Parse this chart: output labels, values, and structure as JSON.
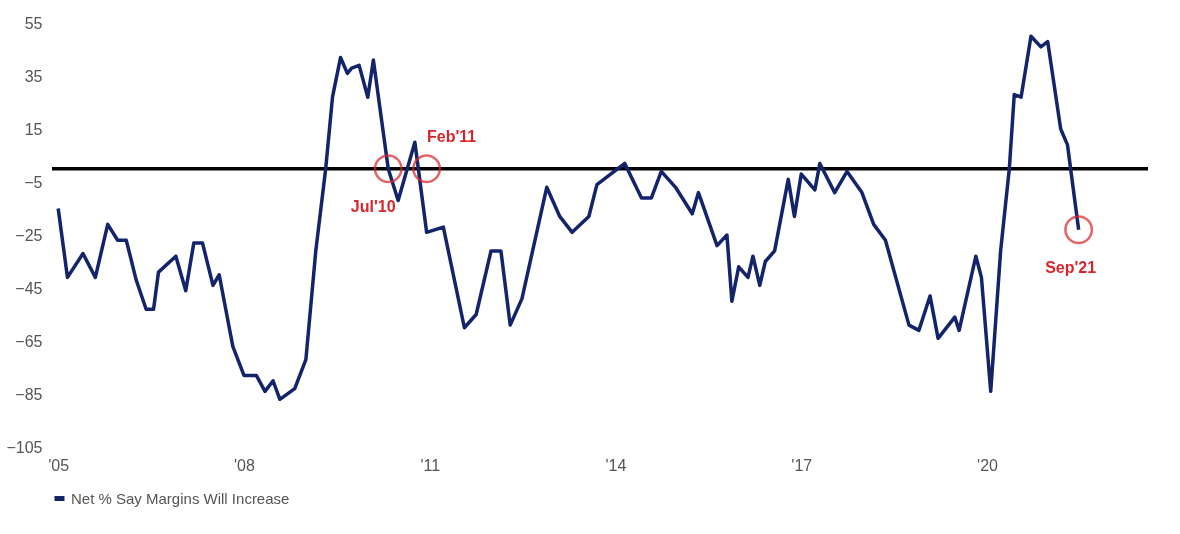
{
  "chart_data": {
    "type": "line",
    "xlim": [
      2004.9,
      2022.6
    ],
    "ylim": [
      -105,
      55
    ],
    "xticks": [
      {
        "value": 2005,
        "label": "'05"
      },
      {
        "value": 2008,
        "label": "'08"
      },
      {
        "value": 2011,
        "label": "'11"
      },
      {
        "value": 2014,
        "label": "'14"
      },
      {
        "value": 2017,
        "label": "'17"
      },
      {
        "value": 2020,
        "label": "'20"
      }
    ],
    "yticks": [
      55,
      35,
      15,
      -5,
      -25,
      -45,
      -65,
      -85,
      -105
    ],
    "grid": false,
    "legend": "bottom",
    "marker": "none",
    "line_style": "solid",
    "series": [
      {
        "name": "Net % Say Margins Will Increase",
        "color": "#13246b",
        "x": [
          2005.0,
          2005.15,
          2005.4,
          2005.6,
          2005.8,
          2005.96,
          2006.1,
          2006.26,
          2006.42,
          2006.54,
          2006.62,
          2006.9,
          2007.06,
          2007.19,
          2007.33,
          2007.5,
          2007.6,
          2007.82,
          2008.0,
          2008.2,
          2008.34,
          2008.47,
          2008.58,
          2008.82,
          2009.0,
          2009.16,
          2009.32,
          2009.43,
          2009.56,
          2009.67,
          2009.74,
          2009.86,
          2010.0,
          2010.09,
          2010.33,
          2010.49,
          2010.76,
          2010.95,
          2011.22,
          2011.56,
          2011.75,
          2011.99,
          2012.15,
          2012.3,
          2012.49,
          2012.89,
          2013.1,
          2013.3,
          2013.57,
          2013.7,
          2014.15,
          2014.42,
          2014.58,
          2014.74,
          2014.97,
          2015.24,
          2015.34,
          2015.64,
          2015.8,
          2015.88,
          2015.99,
          2016.14,
          2016.22,
          2016.33,
          2016.42,
          2016.57,
          2016.79,
          2016.89,
          2017.0,
          2017.22,
          2017.3,
          2017.54,
          2017.74,
          2017.98,
          2018.17,
          2018.36,
          2018.74,
          2018.9,
          2019.08,
          2019.21,
          2019.48,
          2019.55,
          2019.82,
          2019.91,
          2020.06,
          2020.22,
          2020.36,
          2020.44,
          2020.55,
          2020.71,
          2020.87,
          2020.98,
          2021.19,
          2021.3,
          2021.48
        ],
        "values": [
          -15,
          -41,
          -32,
          -41,
          -21,
          -27,
          -27,
          -42,
          -53,
          -53,
          -39,
          -33,
          -46,
          -28,
          -28,
          -44,
          -40,
          -67,
          -78,
          -78,
          -84,
          -80,
          -87,
          -83,
          -72,
          -31,
          0,
          27,
          42,
          36,
          38,
          39,
          27,
          41,
          0,
          -12,
          10,
          -24,
          -22,
          -60,
          -55,
          -31,
          -31,
          -59,
          -49,
          -7,
          -18,
          -24,
          -18,
          -6,
          2,
          -11,
          -11,
          -1,
          -7,
          -17,
          -9,
          -29,
          -25,
          -50,
          -37,
          -41,
          -33,
          -44,
          -35,
          -31,
          -4,
          -18,
          -2,
          -8,
          2,
          -9,
          -1,
          -9,
          -21,
          -27,
          -59,
          -61,
          -48,
          -64,
          -56,
          -61,
          -33,
          -41,
          -84,
          -31,
          0,
          28,
          27,
          50,
          46,
          48,
          15,
          9,
          -23
        ]
      }
    ],
    "ref_lines": [
      {
        "axis": "y",
        "value": 0,
        "color": "#000000"
      }
    ],
    "annotations": [
      {
        "text": "Jul'10",
        "x": 2010.33,
        "y": 0
      },
      {
        "text": "Feb'11",
        "x": 2010.95,
        "y": 0
      },
      {
        "text": "Sep'21",
        "x": 2021.48,
        "y": -23
      }
    ]
  }
}
